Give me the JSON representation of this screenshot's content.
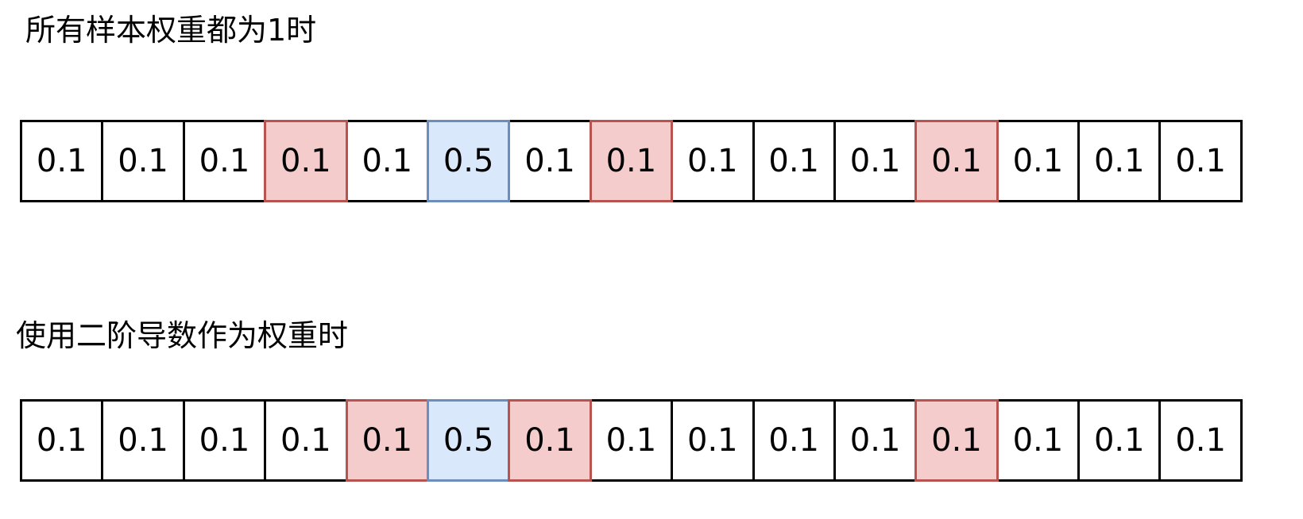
{
  "rows": [
    {
      "title": "所有样本权重都为1时",
      "cells": [
        {
          "value": "0.1",
          "style": "plain"
        },
        {
          "value": "0.1",
          "style": "plain"
        },
        {
          "value": "0.1",
          "style": "plain"
        },
        {
          "value": "0.1",
          "style": "red"
        },
        {
          "value": "0.1",
          "style": "plain"
        },
        {
          "value": "0.5",
          "style": "blue"
        },
        {
          "value": "0.1",
          "style": "plain"
        },
        {
          "value": "0.1",
          "style": "red"
        },
        {
          "value": "0.1",
          "style": "plain"
        },
        {
          "value": "0.1",
          "style": "plain"
        },
        {
          "value": "0.1",
          "style": "plain"
        },
        {
          "value": "0.1",
          "style": "red"
        },
        {
          "value": "0.1",
          "style": "plain"
        },
        {
          "value": "0.1",
          "style": "plain"
        },
        {
          "value": "0.1",
          "style": "plain"
        }
      ]
    },
    {
      "title": "使用二阶导数作为权重时",
      "cells": [
        {
          "value": "0.1",
          "style": "plain"
        },
        {
          "value": "0.1",
          "style": "plain"
        },
        {
          "value": "0.1",
          "style": "plain"
        },
        {
          "value": "0.1",
          "style": "plain"
        },
        {
          "value": "0.1",
          "style": "red"
        },
        {
          "value": "0.5",
          "style": "blue"
        },
        {
          "value": "0.1",
          "style": "red"
        },
        {
          "value": "0.1",
          "style": "plain"
        },
        {
          "value": "0.1",
          "style": "plain"
        },
        {
          "value": "0.1",
          "style": "plain"
        },
        {
          "value": "0.1",
          "style": "plain"
        },
        {
          "value": "0.1",
          "style": "red"
        },
        {
          "value": "0.1",
          "style": "plain"
        },
        {
          "value": "0.1",
          "style": "plain"
        },
        {
          "value": "0.1",
          "style": "plain"
        }
      ]
    }
  ],
  "colors": {
    "plain_fill": "#ffffff",
    "plain_border": "#000000",
    "red_fill": "#f4cccc",
    "red_border": "#b85450",
    "blue_fill": "#dae8fc",
    "blue_border": "#6c8ebf",
    "text": "#000000"
  }
}
